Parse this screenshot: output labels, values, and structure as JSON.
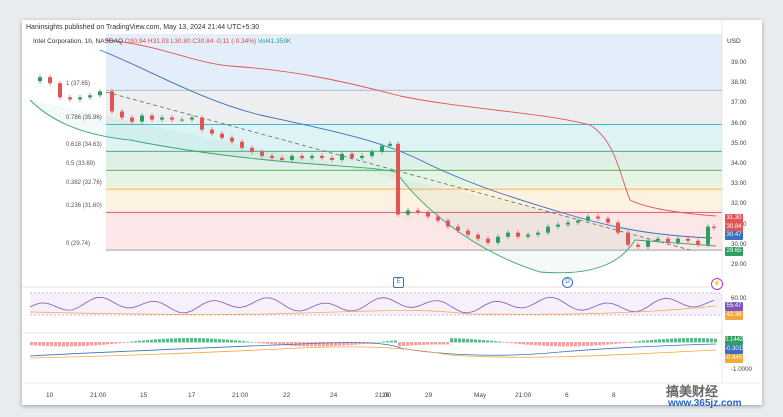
{
  "header": {
    "published": "Haninsights published on TradingView.com, May 13, 2024 21:44 UTC+5:30",
    "symbol": "Intel Corporation, 1h, NASDAQ",
    "ohlc": "O30.94 H31.03 L30.80 C30.84 -0.11 (-0.34%)",
    "volume": "Vol41.359K"
  },
  "currency": "USD",
  "fib_levels": [
    {
      "label": "1 (37.65)",
      "price": 37.65,
      "color": "#b0b4bc"
    },
    {
      "label": "0.786 (35.96)",
      "price": 35.96,
      "color": "#2ab3c4"
    },
    {
      "label": "0.618 (34.63)",
      "price": 34.63,
      "color": "#3aa374"
    },
    {
      "label": "0.5 (33.69)",
      "price": 33.69,
      "color": "#4caf50"
    },
    {
      "label": "0.382 (32.76)",
      "price": 32.76,
      "color": "#f2a93b"
    },
    {
      "label": "0.236 (31.60)",
      "price": 31.6,
      "color": "#e05656"
    },
    {
      "label": "0 (29.74)",
      "price": 29.74,
      "color": "#888888"
    }
  ],
  "price_ticks": [
    "39.00",
    "38.00",
    "37.00",
    "36.00",
    "35.00",
    "34.00",
    "33.00",
    "32.00",
    "31.00",
    "30.00",
    "29.00"
  ],
  "price_badges": [
    {
      "text": "31.30",
      "price": 31.3,
      "color": "#e05656"
    },
    {
      "text": "30.84",
      "price": 30.84,
      "color": "#e05656"
    },
    {
      "text": "30.47",
      "price": 30.47,
      "color": "#3a6fbf"
    },
    {
      "text": "29.65",
      "price": 29.65,
      "color": "#2e9e5e"
    }
  ],
  "time_labels": [
    "10",
    "21:00",
    "15",
    "17",
    "21:00",
    "22",
    "24",
    "21:00",
    "26",
    "29",
    "May",
    "21:00",
    "6",
    "8"
  ],
  "events": {
    "earnings": "E",
    "dividend": "D"
  },
  "rsi": {
    "ticks": [
      "60.00",
      "40.00"
    ],
    "badges": [
      "55.47",
      "42.38"
    ]
  },
  "macd": {
    "badges": [
      "0.1442",
      "-0.3015",
      "-0.4457"
    ],
    "ticks": [
      "-1.0000"
    ]
  },
  "watermark": {
    "cn": "搞美财经",
    "url": "www.365jz.com"
  }
}
